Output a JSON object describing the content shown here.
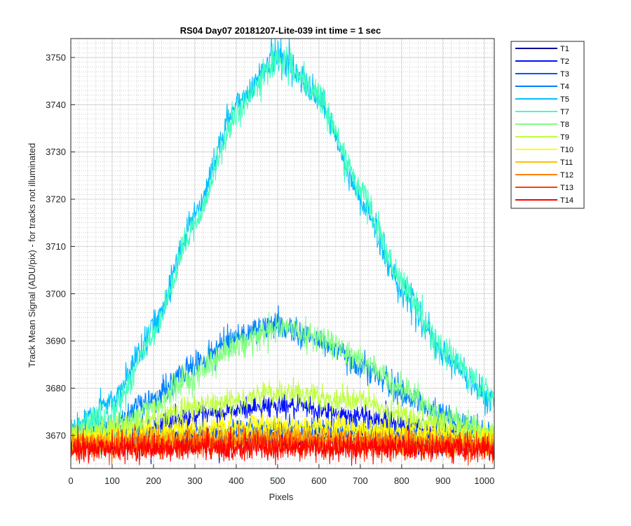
{
  "chart_data": {
    "type": "line",
    "title": "RS04 Day07 20181207-Lite-039 int time = 1 sec",
    "xlabel": "Pixels",
    "ylabel": "Track Mean Signal (ADU/pix) - for tracks not illuminated",
    "xlim": [
      0,
      1024
    ],
    "ylim": [
      3663,
      3754
    ],
    "x_ticks": [
      0,
      100,
      200,
      300,
      400,
      500,
      600,
      700,
      800,
      900,
      1000
    ],
    "y_ticks": [
      3670,
      3680,
      3690,
      3700,
      3710,
      3720,
      3730,
      3740,
      3750
    ],
    "grid": "major and minor",
    "legend_position": "outside-top-right",
    "series": [
      {
        "name": "T1",
        "color": "#00009c",
        "profile": [
          [
            0,
            3668
          ],
          [
            250,
            3669
          ],
          [
            500,
            3669.5
          ],
          [
            750,
            3669
          ],
          [
            1024,
            3668
          ]
        ],
        "noise": 1.2
      },
      {
        "name": "T2",
        "color": "#0010ff",
        "profile": [
          [
            0,
            3669
          ],
          [
            150,
            3671
          ],
          [
            300,
            3674
          ],
          [
            500,
            3676.5
          ],
          [
            700,
            3674
          ],
          [
            900,
            3671
          ],
          [
            1024,
            3669
          ]
        ],
        "noise": 1.2
      },
      {
        "name": "T3",
        "color": "#0055ff",
        "profile": [
          [
            0,
            3669
          ],
          [
            250,
            3670.5
          ],
          [
            500,
            3671.5
          ],
          [
            750,
            3670.5
          ],
          [
            1024,
            3669
          ]
        ],
        "noise": 1.2
      },
      {
        "name": "T4",
        "color": "#0080ff",
        "profile": [
          [
            0,
            3670
          ],
          [
            100,
            3672
          ],
          [
            200,
            3678
          ],
          [
            300,
            3685
          ],
          [
            400,
            3691
          ],
          [
            500,
            3693.5
          ],
          [
            600,
            3690
          ],
          [
            700,
            3685
          ],
          [
            800,
            3679
          ],
          [
            900,
            3674
          ],
          [
            1024,
            3670
          ]
        ],
        "noise": 1.4
      },
      {
        "name": "T5",
        "color": "#00bfff",
        "profile": [
          [
            0,
            3671
          ],
          [
            100,
            3677
          ],
          [
            200,
            3693
          ],
          [
            300,
            3717
          ],
          [
            400,
            3740
          ],
          [
            500,
            3751
          ],
          [
            600,
            3741
          ],
          [
            700,
            3720
          ],
          [
            800,
            3701
          ],
          [
            900,
            3687
          ],
          [
            1024,
            3677
          ]
        ],
        "noise": 1.6
      },
      {
        "name": "T7",
        "color": "#40ffbf",
        "profile": [
          [
            0,
            3670
          ],
          [
            100,
            3675
          ],
          [
            200,
            3691
          ],
          [
            300,
            3715
          ],
          [
            400,
            3738
          ],
          [
            500,
            3750
          ],
          [
            600,
            3742
          ],
          [
            700,
            3722
          ],
          [
            800,
            3702
          ],
          [
            900,
            3688
          ],
          [
            1024,
            3678
          ]
        ],
        "noise": 1.6
      },
      {
        "name": "T8",
        "color": "#80ff80",
        "profile": [
          [
            0,
            3670
          ],
          [
            100,
            3671
          ],
          [
            200,
            3676
          ],
          [
            300,
            3683
          ],
          [
            400,
            3689
          ],
          [
            500,
            3693
          ],
          [
            600,
            3691
          ],
          [
            700,
            3686
          ],
          [
            800,
            3680
          ],
          [
            900,
            3674
          ],
          [
            1024,
            3670
          ]
        ],
        "noise": 1.4
      },
      {
        "name": "T9",
        "color": "#bfff40",
        "profile": [
          [
            0,
            3670
          ],
          [
            150,
            3672
          ],
          [
            300,
            3676
          ],
          [
            500,
            3679
          ],
          [
            700,
            3677
          ],
          [
            850,
            3673
          ],
          [
            1024,
            3670
          ]
        ],
        "noise": 1.3
      },
      {
        "name": "T10",
        "color": "#ffff00",
        "profile": [
          [
            0,
            3669
          ],
          [
            250,
            3671
          ],
          [
            500,
            3672.5
          ],
          [
            750,
            3671
          ],
          [
            1024,
            3669
          ]
        ],
        "noise": 1.2
      },
      {
        "name": "T11",
        "color": "#ffbf00",
        "profile": [
          [
            0,
            3668.5
          ],
          [
            500,
            3670
          ],
          [
            1024,
            3668.5
          ]
        ],
        "noise": 1.2
      },
      {
        "name": "T12",
        "color": "#ff8000",
        "profile": [
          [
            0,
            3668
          ],
          [
            500,
            3669
          ],
          [
            1024,
            3668
          ]
        ],
        "noise": 1.2
      },
      {
        "name": "T13",
        "color": "#ff4000",
        "profile": [
          [
            0,
            3667.5
          ],
          [
            500,
            3668
          ],
          [
            1024,
            3667.5
          ]
        ],
        "noise": 1.3
      },
      {
        "name": "T14",
        "color": "#ff0000",
        "profile": [
          [
            0,
            3667
          ],
          [
            500,
            3667.5
          ],
          [
            1024,
            3667
          ]
        ],
        "noise": 1.3
      }
    ]
  }
}
